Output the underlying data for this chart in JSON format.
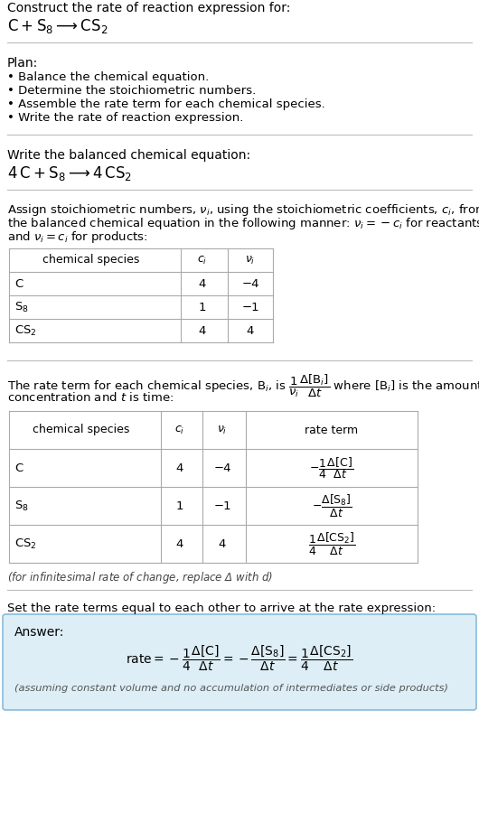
{
  "bg_color": "#ffffff",
  "text_color": "#000000",
  "table_line_color": "#aaaaaa",
  "section_bg": "#ddeef6",
  "section_border": "#88bbdd",
  "title_text": "Construct the rate of reaction expression for:",
  "reaction_unbalanced": "$\\mathrm{C+S_8 \\longrightarrow CS_2}$",
  "plan_header": "Plan:",
  "plan_items": [
    "• Balance the chemical equation.",
    "• Determine the stoichiometric numbers.",
    "• Assemble the rate term for each chemical species.",
    "• Write the rate of reaction expression."
  ],
  "balanced_header": "Write the balanced chemical equation:",
  "balanced_eq": "$\\mathrm{4\\,C+S_8 \\longrightarrow 4\\,CS_2}$",
  "stoich_intro_lines": [
    "Assign stoichiometric numbers, $\\nu_i$, using the stoichiometric coefficients, $c_i$, from",
    "the balanced chemical equation in the following manner: $\\nu_i = -c_i$ for reactants",
    "and $\\nu_i = c_i$ for products:"
  ],
  "table1_headers": [
    "chemical species",
    "$c_i$",
    "$\\nu_i$"
  ],
  "table1_rows": [
    [
      "C",
      "4",
      "−4"
    ],
    [
      "$\\mathrm{S_8}$",
      "1",
      "−1"
    ],
    [
      "$\\mathrm{CS_2}$",
      "4",
      "4"
    ]
  ],
  "rate_intro_lines": [
    "The rate term for each chemical species, $\\mathrm{B}_i$, is $\\dfrac{1}{\\nu_i}\\dfrac{\\Delta[\\mathrm{B}_i]}{\\Delta t}$ where $[\\mathrm{B}_i]$ is the amount",
    "concentration and $t$ is time:"
  ],
  "table2_headers": [
    "chemical species",
    "$c_i$",
    "$\\nu_i$",
    "rate term"
  ],
  "table2_rows": [
    [
      "C",
      "4",
      "−4",
      "$-\\dfrac{1}{4}\\dfrac{\\Delta[\\mathrm{C}]}{\\Delta t}$"
    ],
    [
      "$\\mathrm{S_8}$",
      "1",
      "−1",
      "$-\\dfrac{\\Delta[\\mathrm{S_8}]}{\\Delta t}$"
    ],
    [
      "$\\mathrm{CS_2}$",
      "4",
      "4",
      "$\\dfrac{1}{4}\\dfrac{\\Delta[\\mathrm{CS_2}]}{\\Delta t}$"
    ]
  ],
  "infinitesimal_note": "(for infinitesimal rate of change, replace Δ with $d$)",
  "set_equal_text": "Set the rate terms equal to each other to arrive at the rate expression:",
  "answer_label": "Answer:",
  "answer_eq": "$\\mathrm{rate} = -\\dfrac{1}{4}\\dfrac{\\Delta[\\mathrm{C}]}{\\Delta t} = -\\dfrac{\\Delta[\\mathrm{S_8}]}{\\Delta t} = \\dfrac{1}{4}\\dfrac{\\Delta[\\mathrm{CS_2}]}{\\Delta t}$",
  "assuming_note": "(assuming constant volume and no accumulation of intermediates or side products)"
}
